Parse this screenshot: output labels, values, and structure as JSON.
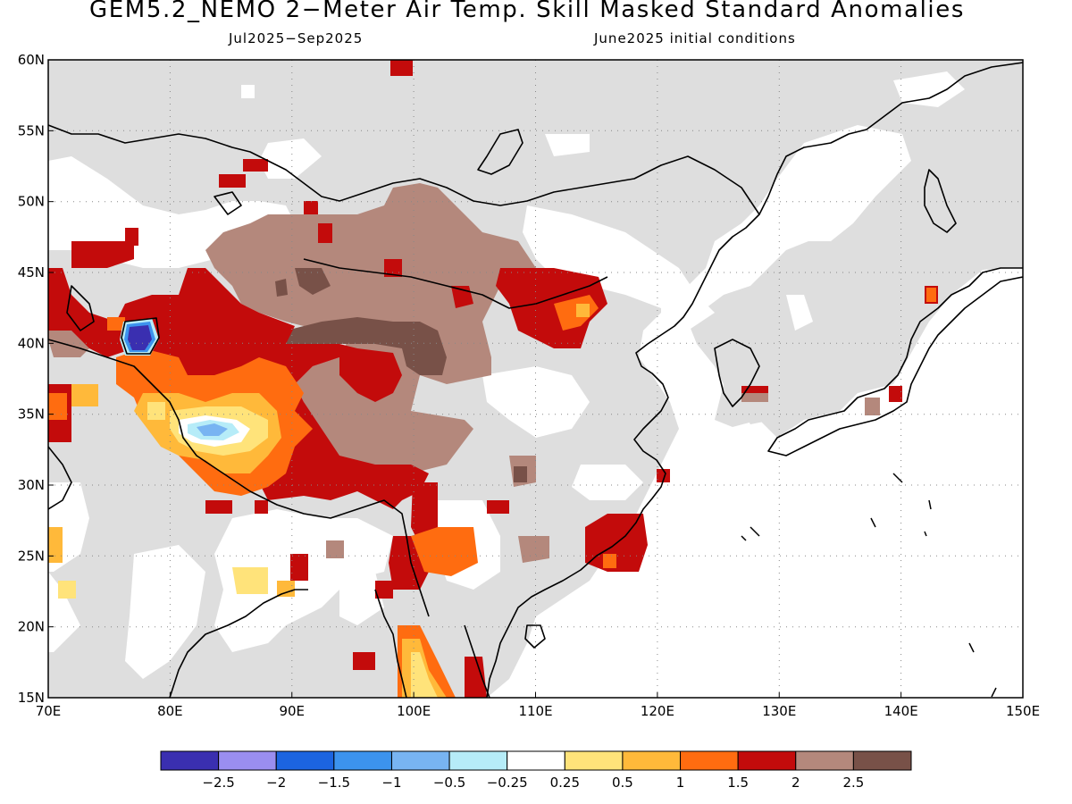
{
  "title": "GEM5.2_NEMO 2−Meter Air Temp. Skill Masked Standard Anomalies",
  "period": "Jul2025−Sep2025",
  "initial_conditions": "June2025 initial conditions",
  "lat_labels": [
    "60N",
    "55N",
    "50N",
    "45N",
    "40N",
    "35N",
    "30N",
    "25N",
    "20N",
    "15N"
  ],
  "lat_values": [
    60,
    55,
    50,
    45,
    40,
    35,
    30,
    25,
    20,
    15
  ],
  "lon_labels": [
    "70E",
    "80E",
    "90E",
    "100E",
    "110E",
    "120E",
    "130E",
    "140E",
    "150E"
  ],
  "lon_values": [
    70,
    80,
    90,
    100,
    110,
    120,
    130,
    140,
    150
  ],
  "map_extent": {
    "lon": [
      70,
      150
    ],
    "lat": [
      15,
      60
    ]
  },
  "colorbar": {
    "colors": [
      "#3a2fb0",
      "#9a8ef0",
      "#1c64e0",
      "#3c93ee",
      "#78b4f2",
      "#b6ecf8",
      "#ffffff",
      "#ffe37a",
      "#ffb93a",
      "#ff6c10",
      "#c30b0b",
      "#b4887c",
      "#785148"
    ],
    "tick_labels": [
      "−2.5",
      "−2",
      "−1.5",
      "−1",
      "−0.5",
      "−0.25",
      "0.25",
      "0.5",
      "1",
      "1.5",
      "2",
      "2.5"
    ]
  },
  "colors": {
    "masked_land": "#dedede",
    "coastline": "#000000",
    "grid": "#888888"
  }
}
